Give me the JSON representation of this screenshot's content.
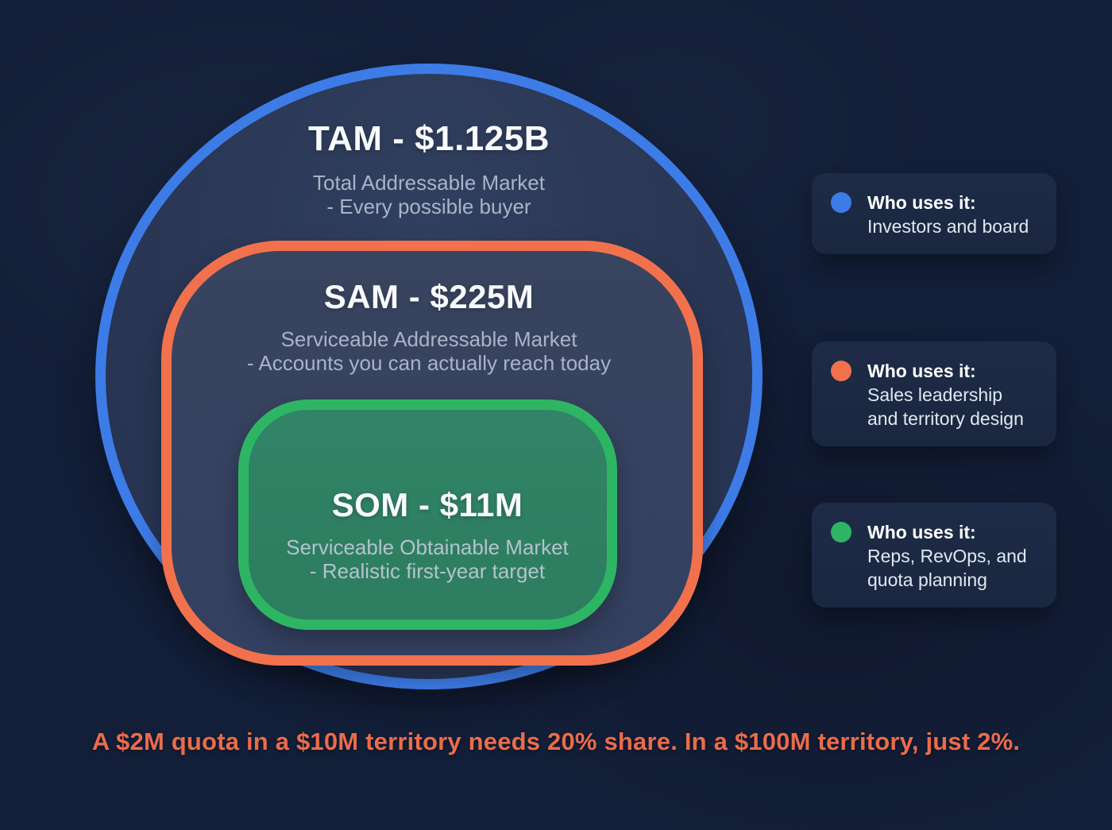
{
  "venn": {
    "tam": {
      "title": "TAM - $1.125B",
      "subtitle_line1": "Total Addressable Market",
      "subtitle_line2": "- Every possible buyer",
      "ring_color": "#3d7ce7",
      "value": "$1.125B"
    },
    "sam": {
      "title": "SAM - $225M",
      "subtitle_line1": "Serviceable Addressable Market",
      "subtitle_line2": "- Accounts you can actually reach today",
      "ring_color": "#f2714d",
      "value": "$225M"
    },
    "som": {
      "title": "SOM - $11M",
      "subtitle_line1": "Serviceable Obtainable Market",
      "subtitle_line2": "- Realistic first-year target",
      "ring_color": "#2eb564",
      "value": "$11M"
    }
  },
  "legend_cards": [
    {
      "title": "Who uses it:",
      "description": "Investors and board",
      "dot_color": "#3d7ce7"
    },
    {
      "title": "Who uses it:",
      "description": "Sales leadership and territory design",
      "dot_color": "#f2714d"
    },
    {
      "title": "Who uses it:",
      "description": "Reps, RevOps, and quota planning",
      "dot_color": "#2eb564"
    }
  ],
  "footer": {
    "statement": "A $2M quota in a $10M territory needs 20% share. In a $100M territory, just 2%.",
    "color": "#ea6c4b"
  },
  "background_color": "#131e38"
}
